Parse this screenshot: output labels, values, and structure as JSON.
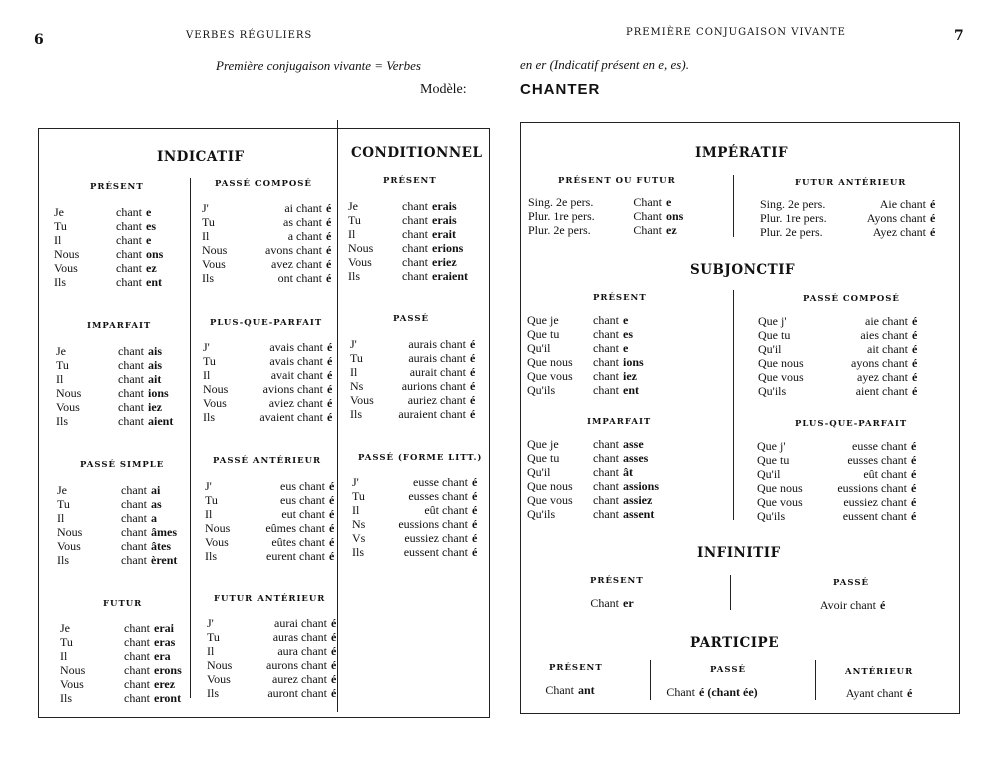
{
  "header": {
    "left_page_number": "6",
    "left_running_title": "VERBES RÉGULIERS",
    "right_running_title": "PREMIÈRE CONJUGAISON VIVANTE",
    "right_page_number": "7",
    "intro_left": "Première conjugaison vivante = Verbes",
    "intro_right": "en er (Indicatif présent en e, es).",
    "model_label": "Modèle:",
    "model_verb": "CHANTER"
  },
  "headings": {
    "indicatif": "INDICATIF",
    "conditionnel": "CONDITIONNEL",
    "imperatif": "IMPÉRATIF",
    "subjonctif": "SUBJONCTIF",
    "infinitif": "INFINITIF",
    "participe": "PARTICIPE"
  },
  "blocks": {
    "ind_present": {
      "title": "PRÉSENT",
      "rows": [
        [
          "Je",
          "chant",
          "e"
        ],
        [
          "Tu",
          "chant",
          "es"
        ],
        [
          "Il",
          "chant",
          "e"
        ],
        [
          "Nous",
          "chant",
          "ons"
        ],
        [
          "Vous",
          "chant",
          "ez"
        ],
        [
          "Ils",
          "chant",
          "ent"
        ]
      ]
    },
    "ind_imparfait": {
      "title": "IMPARFAIT",
      "rows": [
        [
          "Je",
          "chant",
          "ais"
        ],
        [
          "Tu",
          "chant",
          "ais"
        ],
        [
          "Il",
          "chant",
          "ait"
        ],
        [
          "Nous",
          "chant",
          "ions"
        ],
        [
          "Vous",
          "chant",
          "iez"
        ],
        [
          "Ils",
          "chant",
          "aient"
        ]
      ]
    },
    "ind_passe_simple": {
      "title": "PASSÉ SIMPLE",
      "rows": [
        [
          "Je",
          "chant",
          "ai"
        ],
        [
          "Tu",
          "chant",
          "as"
        ],
        [
          "Il",
          "chant",
          "a"
        ],
        [
          "Nous",
          "chant",
          "âmes"
        ],
        [
          "Vous",
          "chant",
          "âtes"
        ],
        [
          "Ils",
          "chant",
          "èrent"
        ]
      ]
    },
    "ind_futur": {
      "title": "FUTUR",
      "rows": [
        [
          "Je",
          "chant",
          "erai"
        ],
        [
          "Tu",
          "chant",
          "eras"
        ],
        [
          "Il",
          "chant",
          "era"
        ],
        [
          "Nous",
          "chant",
          "erons"
        ],
        [
          "Vous",
          "chant",
          "erez"
        ],
        [
          "Ils",
          "chant",
          "eront"
        ]
      ]
    },
    "ind_passe_compose": {
      "title": "PASSÉ COMPOSÉ",
      "rows": [
        [
          "J'",
          "ai chant",
          "é"
        ],
        [
          "Tu",
          "as chant",
          "é"
        ],
        [
          "Il",
          "a chant",
          "é"
        ],
        [
          "Nous",
          "avons chant",
          "é"
        ],
        [
          "Vous",
          "avez chant",
          "é"
        ],
        [
          "Ils",
          "ont chant",
          "é"
        ]
      ]
    },
    "ind_pqp": {
      "title": "PLUS-QUE-PARFAIT",
      "rows": [
        [
          "J'",
          "avais chant",
          "é"
        ],
        [
          "Tu",
          "avais chant",
          "é"
        ],
        [
          "Il",
          "avait chant",
          "é"
        ],
        [
          "Nous",
          "avions chant",
          "é"
        ],
        [
          "Vous",
          "aviez chant",
          "é"
        ],
        [
          "Ils",
          "avaient chant",
          "é"
        ]
      ]
    },
    "ind_passe_anterieur": {
      "title": "PASSÉ ANTÉRIEUR",
      "rows": [
        [
          "J'",
          "eus chant",
          "é"
        ],
        [
          "Tu",
          "eus chant",
          "é"
        ],
        [
          "Il",
          "eut chant",
          "é"
        ],
        [
          "Nous",
          "eûmes chant",
          "é"
        ],
        [
          "Vous",
          "eûtes chant",
          "é"
        ],
        [
          "Ils",
          "eurent chant",
          "é"
        ]
      ]
    },
    "ind_futur_anterieur": {
      "title": "FUTUR ANTÉRIEUR",
      "rows": [
        [
          "J'",
          "aurai chant",
          "é"
        ],
        [
          "Tu",
          "auras chant",
          "é"
        ],
        [
          "Il",
          "aura chant",
          "é"
        ],
        [
          "Nous",
          "aurons chant",
          "é"
        ],
        [
          "Vous",
          "aurez chant",
          "é"
        ],
        [
          "Ils",
          "auront chant",
          "é"
        ]
      ]
    },
    "cond_present": {
      "title": "PRÉSENT",
      "rows": [
        [
          "Je",
          "chant",
          "erais"
        ],
        [
          "Tu",
          "chant",
          "erais"
        ],
        [
          "Il",
          "chant",
          "erait"
        ],
        [
          "Nous",
          "chant",
          "erions"
        ],
        [
          "Vous",
          "chant",
          "eriez"
        ],
        [
          "Ils",
          "chant",
          "eraient"
        ]
      ]
    },
    "cond_passe": {
      "title": "PASSÉ",
      "rows": [
        [
          "J'",
          "aurais chant",
          "é"
        ],
        [
          "Tu",
          "aurais chant",
          "é"
        ],
        [
          "Il",
          "aurait chant",
          "é"
        ],
        [
          "Ns",
          "aurions chant",
          "é"
        ],
        [
          "Vous",
          "auriez chant",
          "é"
        ],
        [
          "Ils",
          "auraient chant",
          "é"
        ]
      ]
    },
    "cond_passe_litt": {
      "title": "PASSÉ (FORME LITT.)",
      "rows": [
        [
          "J'",
          "eusse chant",
          "é"
        ],
        [
          "Tu",
          "eusses chant",
          "é"
        ],
        [
          "Il",
          "eût chant",
          "é"
        ],
        [
          "Ns",
          "eussions chant",
          "é"
        ],
        [
          "Vs",
          "eussiez chant",
          "é"
        ],
        [
          "Ils",
          "eussent chant",
          "é"
        ]
      ]
    },
    "imp_present": {
      "title": "PRÉSENT OU FUTUR",
      "rows": [
        [
          "Sing. 2e pers.",
          "Chant",
          "e"
        ],
        [
          "Plur. 1re pers.",
          "Chant",
          "ons"
        ],
        [
          "Plur. 2e pers.",
          "Chant",
          "ez"
        ]
      ]
    },
    "imp_futur_anterieur": {
      "title": "FUTUR ANTÉRIEUR",
      "rows": [
        [
          "Sing. 2e pers.",
          "Aie chant",
          "é"
        ],
        [
          "Plur. 1re pers.",
          "Ayons chant",
          "é"
        ],
        [
          "Plur. 2e pers.",
          "Ayez chant",
          "é"
        ]
      ]
    },
    "subj_present": {
      "title": "PRÉSENT",
      "rows": [
        [
          "Que je",
          "chant",
          "e"
        ],
        [
          "Que tu",
          "chant",
          "es"
        ],
        [
          "Qu'il",
          "chant",
          "e"
        ],
        [
          "Que nous",
          "chant",
          "ions"
        ],
        [
          "Que vous",
          "chant",
          "iez"
        ],
        [
          "Qu'ils",
          "chant",
          "ent"
        ]
      ]
    },
    "subj_passe_compose": {
      "title": "PASSÉ COMPOSÉ",
      "rows": [
        [
          "Que j'",
          "aie chant",
          "é"
        ],
        [
          "Que tu",
          "aies chant",
          "é"
        ],
        [
          "Qu'il",
          "ait chant",
          "é"
        ],
        [
          "Que nous",
          "ayons chant",
          "é"
        ],
        [
          "Que vous",
          "ayez chant",
          "é"
        ],
        [
          "Qu'ils",
          "aient chant",
          "é"
        ]
      ]
    },
    "subj_imparfait": {
      "title": "IMPARFAIT",
      "rows": [
        [
          "Que je",
          "chant",
          "asse"
        ],
        [
          "Que tu",
          "chant",
          "asses"
        ],
        [
          "Qu'il",
          "chant",
          "ât"
        ],
        [
          "Que nous",
          "chant",
          "assions"
        ],
        [
          "Que vous",
          "chant",
          "assiez"
        ],
        [
          "Qu'ils",
          "chant",
          "assent"
        ]
      ]
    },
    "subj_pqp": {
      "title": "PLUS-QUE-PARFAIT",
      "rows": [
        [
          "Que j'",
          "eusse chant",
          "é"
        ],
        [
          "Que tu",
          "eusses chant",
          "é"
        ],
        [
          "Qu'il",
          "eût chant",
          "é"
        ],
        [
          "Que nous",
          "eussions chant",
          "é"
        ],
        [
          "Que vous",
          "eussiez chant",
          "é"
        ],
        [
          "Qu'ils",
          "eussent chant",
          "é"
        ]
      ]
    },
    "inf_present": {
      "title": "PRÉSENT",
      "rows": [
        [
          "",
          "Chant",
          "er"
        ]
      ]
    },
    "inf_passe": {
      "title": "PASSÉ",
      "rows": [
        [
          "",
          "Avoir chant",
          "é"
        ]
      ]
    },
    "part_present": {
      "title": "PRÉSENT",
      "rows": [
        [
          "",
          "Chant",
          "ant"
        ]
      ]
    },
    "part_passe": {
      "title": "PASSÉ",
      "rows": [
        [
          "",
          "Chant",
          "é (chant ée)"
        ]
      ]
    },
    "part_anterieur": {
      "title": "ANTÉRIEUR",
      "rows": [
        [
          "",
          "Ayant chant",
          "é"
        ]
      ]
    }
  }
}
